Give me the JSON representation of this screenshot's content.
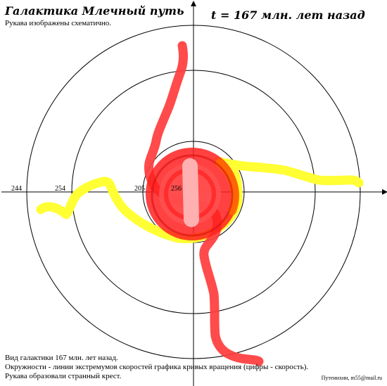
{
  "header": {
    "title": "Галактика Млечный путь",
    "timeline": "t = 167 млн. лет назад",
    "subtitle": "Рукава изображены схематично."
  },
  "axis_labels": [
    "244",
    "254",
    "205",
    "256"
  ],
  "footer": {
    "line1": "Вид галактики 167 млн. лет назад.",
    "line2": "Окружности - линии экстремумов скоростей графика кривых вращения (цифры - скорость).",
    "line3": "Рукава образовали странный крест.",
    "author": "Путенихин, m55@mail.ru"
  },
  "colors": {
    "red_arm": "#ff3c3c",
    "yellow_arm": "#ffff33",
    "core_red": "#ff2020",
    "core_orange": "#ff6a00",
    "bar_pink": "#ffb0b0"
  }
}
